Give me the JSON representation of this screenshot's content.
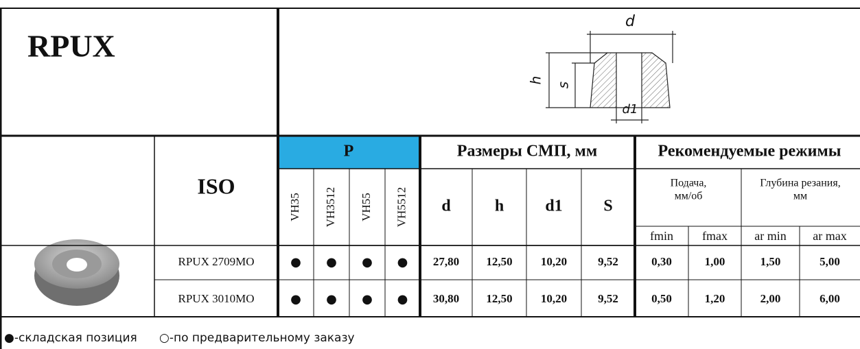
{
  "header": {
    "title": "RPUX",
    "diagram": {
      "d": "d",
      "h": "h",
      "s": "s",
      "d1": "d1"
    }
  },
  "table": {
    "group_headers": {
      "grade": "P",
      "dimensions": "Размеры  СМП, мм",
      "modes": "Рекомендуемые режимы"
    },
    "iso": "ISO",
    "grades": [
      "VH35",
      "VH3512",
      "VH55",
      "VH5512"
    ],
    "dimensions": [
      "d",
      "h",
      "d1",
      "S"
    ],
    "feed": {
      "title": [
        "Подача,",
        "мм/об"
      ],
      "columns": [
        "fmin",
        "fmax"
      ]
    },
    "depth": {
      "title": [
        "Глубина резания,",
        "мм"
      ],
      "columns": [
        "ar min",
        "ar max"
      ]
    },
    "rows": [
      {
        "code": "RPUX 2709MO",
        "grades": [
          "●",
          "●",
          "●",
          "●"
        ],
        "dimensions": [
          "27,80",
          "12,50",
          "10,20",
          "9,52"
        ],
        "modes": [
          "0,30",
          "1,00",
          "1,50",
          "5,00"
        ]
      },
      {
        "code": "RPUX 3010MO",
        "grades": [
          "●",
          "●",
          "●",
          "●"
        ],
        "dimensions": [
          "30,80",
          "12,50",
          "10,20",
          "9,52"
        ],
        "modes": [
          "0,50",
          "1,20",
          "2,00",
          "6,00"
        ]
      }
    ]
  },
  "legend": {
    "stock": "●-складская позиция",
    "order": "○-по предварительному заказу"
  }
}
